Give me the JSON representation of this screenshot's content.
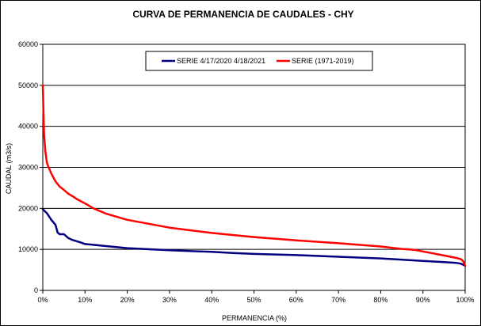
{
  "chart_data": {
    "type": "line",
    "title": "CURVA DE PERMANENCIA DE CAUDALES - CHY",
    "xlabel": "PERMANENCIA (%)",
    "ylabel": "CAUDAL (m3/s)",
    "xlim": [
      0,
      100
    ],
    "ylim": [
      0,
      60000
    ],
    "x_ticks": [
      "0%",
      "10%",
      "20%",
      "30%",
      "40%",
      "50%",
      "60%",
      "70%",
      "80%",
      "90%",
      "100%"
    ],
    "y_ticks": [
      "0",
      "10000",
      "20000",
      "30000",
      "40000",
      "50000",
      "60000"
    ],
    "grid": "horizontal",
    "legend_position": "top",
    "series": [
      {
        "name": "SERIE 4/17/2020 4/18/2021",
        "color": "#000080",
        "x": [
          0,
          1,
          2,
          3,
          3.5,
          4,
          5,
          6,
          7,
          8,
          9,
          10,
          15,
          20,
          30,
          40,
          45,
          50,
          60,
          70,
          80,
          90,
          95,
          98,
          99,
          100
        ],
        "y": [
          19800,
          18800,
          17200,
          16000,
          14100,
          13700,
          13700,
          12800,
          12300,
          12000,
          11700,
          11300,
          10800,
          10300,
          9800,
          9400,
          9100,
          8900,
          8600,
          8200,
          7800,
          7200,
          6900,
          6700,
          6500,
          6000
        ]
      },
      {
        "name": "SERIE (1971-2019)",
        "color": "#ff0000",
        "x": [
          0,
          0.3,
          0.6,
          1,
          2,
          3,
          4,
          5,
          6,
          7,
          8,
          10,
          12,
          15,
          20,
          30,
          40,
          50,
          60,
          70,
          80,
          85,
          88,
          90,
          92,
          95,
          97,
          98,
          99,
          99.5,
          100
        ],
        "y": [
          50000,
          38000,
          34000,
          31000,
          28500,
          26600,
          25300,
          24500,
          23600,
          23000,
          22300,
          21200,
          20000,
          18700,
          17200,
          15300,
          14000,
          13000,
          12200,
          11500,
          10700,
          10100,
          9900,
          9500,
          9100,
          8500,
          8100,
          7900,
          7600,
          7200,
          6000
        ]
      }
    ]
  }
}
